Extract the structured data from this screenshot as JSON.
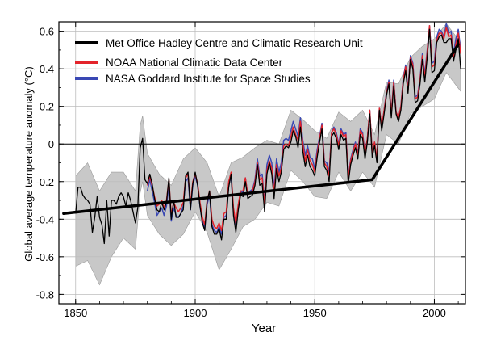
{
  "chart_data": {
    "type": "line",
    "xlabel": "Year",
    "ylabel": "Global average temperature anomaly (°C)",
    "xlim": [
      1843,
      2013
    ],
    "ylim": [
      -0.85,
      0.65
    ],
    "xticks": [
      1850,
      1900,
      1950,
      2000
    ],
    "yticks": [
      -0.8,
      -0.6,
      -0.4,
      -0.2,
      0,
      0.2,
      0.4,
      0.6
    ],
    "ytick_labels": [
      "-0.8",
      "-0.6",
      "-0.4",
      "-0.2",
      "0",
      "0.2",
      "0.4",
      "0.6"
    ],
    "grid": true,
    "legend_position": "top-left",
    "series": [
      {
        "name": "Met Office Hadley Centre and Climatic Research Unit",
        "color": "#000000",
        "x": [
          1850,
          1851,
          1852,
          1853,
          1854,
          1855,
          1856,
          1857,
          1858,
          1859,
          1860,
          1861,
          1862,
          1863,
          1864,
          1865,
          1866,
          1867,
          1868,
          1869,
          1870,
          1871,
          1872,
          1873,
          1874,
          1875,
          1876,
          1877,
          1878,
          1879,
          1880,
          1881,
          1882,
          1883,
          1884,
          1885,
          1886,
          1887,
          1888,
          1889,
          1890,
          1891,
          1892,
          1893,
          1894,
          1895,
          1896,
          1897,
          1898,
          1899,
          1900,
          1901,
          1902,
          1903,
          1904,
          1905,
          1906,
          1907,
          1908,
          1909,
          1910,
          1911,
          1912,
          1913,
          1914,
          1915,
          1916,
          1917,
          1918,
          1919,
          1920,
          1921,
          1922,
          1923,
          1924,
          1925,
          1926,
          1927,
          1928,
          1929,
          1930,
          1931,
          1932,
          1933,
          1934,
          1935,
          1936,
          1937,
          1938,
          1939,
          1940,
          1941,
          1942,
          1943,
          1944,
          1945,
          1946,
          1947,
          1948,
          1949,
          1950,
          1951,
          1952,
          1953,
          1954,
          1955,
          1956,
          1957,
          1958,
          1959,
          1960,
          1961,
          1962,
          1963,
          1964,
          1965,
          1966,
          1967,
          1968,
          1969,
          1970,
          1971,
          1972,
          1973,
          1974,
          1975,
          1976,
          1977,
          1978,
          1979,
          1980,
          1981,
          1982,
          1983,
          1984,
          1985,
          1986,
          1987,
          1988,
          1989,
          1990,
          1991,
          1992,
          1993,
          1994,
          1995,
          1996,
          1997,
          1998,
          1999,
          2000,
          2001,
          2002,
          2003,
          2004,
          2005,
          2006,
          2007,
          2008,
          2009,
          2010,
          2011
        ],
        "values": [
          -0.37,
          -0.23,
          -0.23,
          -0.27,
          -0.29,
          -0.3,
          -0.32,
          -0.47,
          -0.39,
          -0.28,
          -0.39,
          -0.43,
          -0.53,
          -0.3,
          -0.49,
          -0.3,
          -0.3,
          -0.32,
          -0.28,
          -0.26,
          -0.28,
          -0.33,
          -0.26,
          -0.3,
          -0.36,
          -0.42,
          -0.34,
          -0.02,
          0.03,
          -0.19,
          -0.21,
          -0.16,
          -0.21,
          -0.29,
          -0.35,
          -0.36,
          -0.31,
          -0.35,
          -0.31,
          -0.18,
          -0.4,
          -0.3,
          -0.39,
          -0.39,
          -0.37,
          -0.35,
          -0.17,
          -0.15,
          -0.35,
          -0.21,
          -0.15,
          -0.22,
          -0.33,
          -0.42,
          -0.46,
          -0.3,
          -0.25,
          -0.44,
          -0.48,
          -0.48,
          -0.45,
          -0.51,
          -0.4,
          -0.4,
          -0.23,
          -0.16,
          -0.38,
          -0.47,
          -0.35,
          -0.27,
          -0.28,
          -0.2,
          -0.29,
          -0.28,
          -0.27,
          -0.22,
          -0.11,
          -0.22,
          -0.21,
          -0.36,
          -0.16,
          -0.1,
          -0.16,
          -0.29,
          -0.13,
          -0.2,
          -0.15,
          -0.03,
          -0.01,
          -0.02,
          0.01,
          0.07,
          0.04,
          -0.02,
          0.09,
          -0.04,
          -0.12,
          -0.06,
          -0.12,
          -0.14,
          -0.17,
          -0.07,
          0.01,
          0.08,
          -0.12,
          -0.14,
          -0.2,
          0.04,
          0.06,
          0.03,
          -0.03,
          0.05,
          0.02,
          0.03,
          -0.21,
          -0.11,
          -0.06,
          -0.02,
          -0.08,
          0.05,
          0.03,
          -0.08,
          0.01,
          0.16,
          -0.07,
          -0.01,
          -0.1,
          0.18,
          0.07,
          0.16,
          0.26,
          0.32,
          0.14,
          0.31,
          0.16,
          0.12,
          0.18,
          0.32,
          0.39,
          0.27,
          0.45,
          0.4,
          0.22,
          0.23,
          0.32,
          0.45,
          0.33,
          0.46,
          0.61,
          0.38,
          0.39,
          0.54,
          0.57,
          0.58,
          0.54,
          0.54,
          0.56,
          0.56,
          0.44,
          0.5,
          0.56,
          0.4
        ]
      },
      {
        "name": "NOAA National Climatic Data Center",
        "color": "#e3242b",
        "x": [
          1880,
          1881,
          1882,
          1883,
          1884,
          1885,
          1886,
          1887,
          1888,
          1889,
          1890,
          1891,
          1892,
          1893,
          1894,
          1895,
          1896,
          1897,
          1898,
          1899,
          1900,
          1901,
          1902,
          1903,
          1904,
          1905,
          1906,
          1907,
          1908,
          1909,
          1910,
          1911,
          1912,
          1913,
          1914,
          1915,
          1916,
          1917,
          1918,
          1919,
          1920,
          1921,
          1922,
          1923,
          1924,
          1925,
          1926,
          1927,
          1928,
          1929,
          1930,
          1931,
          1932,
          1933,
          1934,
          1935,
          1936,
          1937,
          1938,
          1939,
          1940,
          1941,
          1942,
          1943,
          1944,
          1945,
          1946,
          1947,
          1948,
          1949,
          1950,
          1951,
          1952,
          1953,
          1954,
          1955,
          1956,
          1957,
          1958,
          1959,
          1960,
          1961,
          1962,
          1963,
          1964,
          1965,
          1966,
          1967,
          1968,
          1969,
          1970,
          1971,
          1972,
          1973,
          1974,
          1975,
          1976,
          1977,
          1978,
          1979,
          1980,
          1981,
          1982,
          1983,
          1984,
          1985,
          1986,
          1987,
          1988,
          1989,
          1990,
          1991,
          1992,
          1993,
          1994,
          1995,
          1996,
          1997,
          1998,
          1999,
          2000,
          2001,
          2002,
          2003,
          2004,
          2005,
          2006,
          2007,
          2008,
          2009,
          2010,
          2011
        ],
        "values": [
          -0.22,
          -0.17,
          -0.22,
          -0.28,
          -0.33,
          -0.32,
          -0.3,
          -0.34,
          -0.3,
          -0.19,
          -0.38,
          -0.31,
          -0.34,
          -0.36,
          -0.34,
          -0.31,
          -0.18,
          -0.16,
          -0.32,
          -0.2,
          -0.16,
          -0.21,
          -0.31,
          -0.39,
          -0.43,
          -0.3,
          -0.25,
          -0.4,
          -0.44,
          -0.45,
          -0.42,
          -0.46,
          -0.37,
          -0.36,
          -0.2,
          -0.15,
          -0.34,
          -0.42,
          -0.32,
          -0.25,
          -0.25,
          -0.18,
          -0.27,
          -0.26,
          -0.25,
          -0.2,
          -0.1,
          -0.19,
          -0.18,
          -0.32,
          -0.14,
          -0.09,
          -0.13,
          -0.26,
          -0.11,
          -0.17,
          -0.13,
          -0.01,
          0.0,
          -0.01,
          0.04,
          0.09,
          0.05,
          0.02,
          0.12,
          0.0,
          -0.09,
          -0.03,
          -0.09,
          -0.11,
          -0.15,
          -0.05,
          0.03,
          0.1,
          -0.1,
          -0.12,
          -0.17,
          0.06,
          0.08,
          0.05,
          -0.01,
          0.07,
          0.04,
          0.05,
          -0.18,
          -0.09,
          -0.04,
          0.0,
          -0.06,
          0.07,
          0.05,
          -0.06,
          0.03,
          0.18,
          -0.05,
          0.01,
          -0.08,
          0.19,
          0.09,
          0.18,
          0.27,
          0.33,
          0.16,
          0.33,
          0.17,
          0.14,
          0.2,
          0.34,
          0.41,
          0.28,
          0.46,
          0.42,
          0.24,
          0.25,
          0.34,
          0.47,
          0.35,
          0.49,
          0.63,
          0.41,
          0.42,
          0.55,
          0.59,
          0.59,
          0.56,
          0.62,
          0.57,
          0.58,
          0.46,
          0.53,
          0.59,
          0.48
        ]
      },
      {
        "name": "NASA Goddard Institute for Space Studies",
        "color": "#3a48b4",
        "x": [
          1880,
          1881,
          1882,
          1883,
          1884,
          1885,
          1886,
          1887,
          1888,
          1889,
          1890,
          1891,
          1892,
          1893,
          1894,
          1895,
          1896,
          1897,
          1898,
          1899,
          1900,
          1901,
          1902,
          1903,
          1904,
          1905,
          1906,
          1907,
          1908,
          1909,
          1910,
          1911,
          1912,
          1913,
          1914,
          1915,
          1916,
          1917,
          1918,
          1919,
          1920,
          1921,
          1922,
          1923,
          1924,
          1925,
          1926,
          1927,
          1928,
          1929,
          1930,
          1931,
          1932,
          1933,
          1934,
          1935,
          1936,
          1937,
          1938,
          1939,
          1940,
          1941,
          1942,
          1943,
          1944,
          1945,
          1946,
          1947,
          1948,
          1949,
          1950,
          1951,
          1952,
          1953,
          1954,
          1955,
          1956,
          1957,
          1958,
          1959,
          1960,
          1961,
          1962,
          1963,
          1964,
          1965,
          1966,
          1967,
          1968,
          1969,
          1970,
          1971,
          1972,
          1973,
          1974,
          1975,
          1976,
          1977,
          1978,
          1979,
          1980,
          1981,
          1982,
          1983,
          1984,
          1985,
          1986,
          1987,
          1988,
          1989,
          1990,
          1991,
          1992,
          1993,
          1994,
          1995,
          1996,
          1997,
          1998,
          1999,
          2000,
          2001,
          2002,
          2003,
          2004,
          2005,
          2006,
          2007,
          2008,
          2009,
          2010,
          2011
        ],
        "values": [
          -0.25,
          -0.19,
          -0.25,
          -0.31,
          -0.38,
          -0.36,
          -0.34,
          -0.38,
          -0.33,
          -0.22,
          -0.41,
          -0.34,
          -0.38,
          -0.39,
          -0.37,
          -0.33,
          -0.2,
          -0.18,
          -0.35,
          -0.22,
          -0.17,
          -0.22,
          -0.33,
          -0.41,
          -0.45,
          -0.32,
          -0.27,
          -0.43,
          -0.46,
          -0.47,
          -0.44,
          -0.48,
          -0.39,
          -0.38,
          -0.22,
          -0.17,
          -0.36,
          -0.43,
          -0.33,
          -0.25,
          -0.26,
          -0.18,
          -0.27,
          -0.25,
          -0.24,
          -0.19,
          -0.08,
          -0.17,
          -0.16,
          -0.31,
          -0.11,
          -0.06,
          -0.1,
          -0.24,
          -0.08,
          -0.15,
          -0.1,
          0.02,
          0.03,
          0.02,
          0.07,
          0.12,
          0.08,
          0.04,
          0.14,
          0.02,
          -0.06,
          -0.01,
          -0.07,
          -0.08,
          -0.13,
          -0.03,
          0.04,
          0.11,
          -0.09,
          -0.1,
          -0.15,
          0.06,
          0.09,
          0.06,
          0.0,
          0.08,
          0.05,
          0.06,
          -0.17,
          -0.08,
          -0.03,
          0.01,
          -0.05,
          0.08,
          0.06,
          -0.05,
          0.03,
          0.18,
          -0.05,
          0.01,
          -0.08,
          0.19,
          0.09,
          0.18,
          0.28,
          0.34,
          0.16,
          0.34,
          0.17,
          0.14,
          0.2,
          0.35,
          0.42,
          0.29,
          0.47,
          0.43,
          0.25,
          0.26,
          0.35,
          0.48,
          0.37,
          0.5,
          0.63,
          0.43,
          0.44,
          0.57,
          0.61,
          0.6,
          0.57,
          0.64,
          0.59,
          0.6,
          0.48,
          0.56,
          0.61,
          0.5
        ]
      }
    ],
    "uncertainty_band": {
      "color": "#c8c8c8",
      "x": [
        1850,
        1855,
        1860,
        1865,
        1870,
        1875,
        1877,
        1878,
        1880,
        1885,
        1890,
        1895,
        1900,
        1905,
        1910,
        1915,
        1920,
        1925,
        1930,
        1935,
        1940,
        1945,
        1950,
        1955,
        1960,
        1965,
        1970,
        1975,
        1980,
        1985,
        1990,
        1995,
        2000,
        2005,
        2011
      ],
      "lower": [
        -0.65,
        -0.62,
        -0.75,
        -0.6,
        -0.5,
        -0.56,
        -0.26,
        -0.2,
        -0.38,
        -0.48,
        -0.54,
        -0.48,
        -0.36,
        -0.47,
        -0.67,
        -0.56,
        -0.44,
        -0.4,
        -0.31,
        -0.33,
        -0.14,
        -0.2,
        -0.28,
        -0.29,
        -0.15,
        -0.25,
        -0.15,
        -0.23,
        0.05,
        0.0,
        0.16,
        0.2,
        0.24,
        0.38,
        0.28
      ],
      "upper": [
        -0.17,
        -0.1,
        -0.25,
        -0.15,
        -0.15,
        -0.25,
        0.1,
        0.15,
        -0.05,
        -0.16,
        -0.22,
        -0.08,
        -0.02,
        -0.1,
        -0.28,
        -0.1,
        -0.07,
        -0.02,
        0.02,
        0.0,
        0.18,
        0.13,
        0.07,
        0.03,
        0.17,
        0.12,
        0.18,
        0.05,
        0.33,
        0.32,
        0.46,
        0.52,
        0.56,
        0.64,
        0.54
      ]
    },
    "trend_line": {
      "color": "#000000",
      "x": [
        1845,
        1974,
        2010
      ],
      "values": [
        -0.37,
        -0.19,
        0.53
      ]
    }
  }
}
